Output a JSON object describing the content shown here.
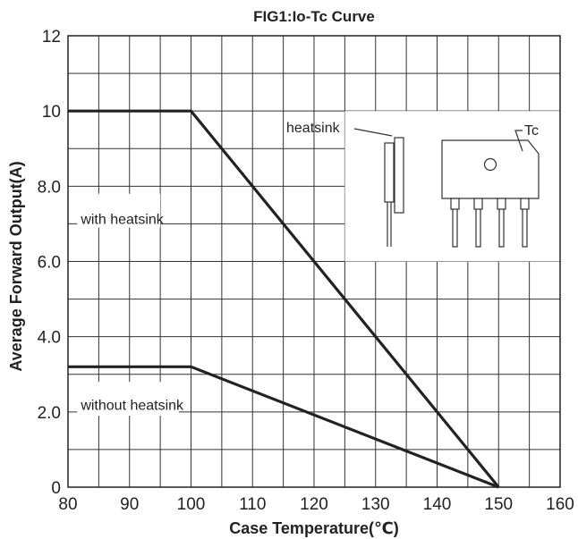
{
  "chart_data": {
    "type": "line",
    "title": "FIG1:Io-Tc Curve",
    "xlabel": "Case Temperature(℃)",
    "ylabel": "Average Forward Output(A)",
    "xlim": [
      80,
      160
    ],
    "ylim": [
      0,
      12
    ],
    "x_ticks": [
      80,
      90,
      100,
      110,
      120,
      130,
      140,
      150,
      160
    ],
    "x_tick_labels": [
      "80",
      "90",
      "100",
      "110",
      "120",
      "130",
      "140",
      "150",
      "160"
    ],
    "y_ticks": [
      0,
      2,
      4,
      6,
      8,
      10,
      12
    ],
    "y_tick_labels": [
      "0",
      "2.0",
      "4.0",
      "6.0",
      "8.0",
      "10",
      "12"
    ],
    "grid": true,
    "series": [
      {
        "points": [
          [
            80,
            10
          ],
          [
            100,
            10
          ],
          [
            150,
            0
          ]
        ]
      },
      {
        "points": [
          [
            80,
            3.2
          ],
          [
            100,
            3.2
          ],
          [
            150,
            0
          ]
        ]
      }
    ],
    "annotations": [
      {
        "text": "with heatsink",
        "x": 81.5,
        "y": 7.0
      },
      {
        "text": "without heatsink",
        "x": 81.5,
        "y": 2.05
      }
    ],
    "inset": {
      "heatsink_label": "heatsink",
      "tc_label": "Tc"
    }
  }
}
